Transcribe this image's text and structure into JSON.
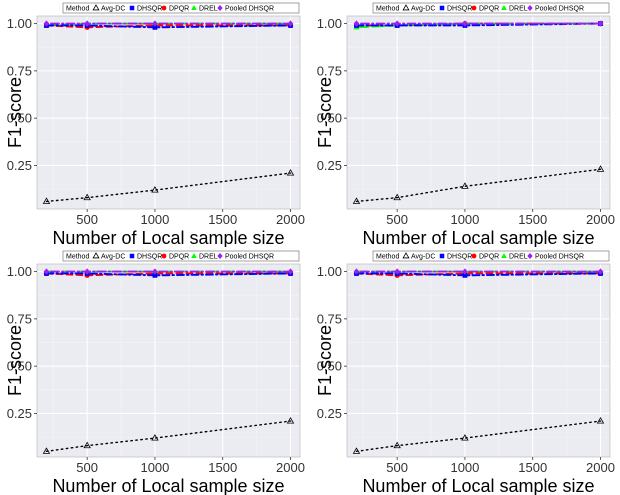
{
  "legend": {
    "title": "Method",
    "items": [
      {
        "name": "Avg-DC",
        "color": "#000000",
        "shape": "triangle-open",
        "line": "dotted"
      },
      {
        "name": "DHSQR",
        "color": "#0000ff",
        "shape": "square",
        "line": "dashdot"
      },
      {
        "name": "DPQR",
        "color": "#ff0000",
        "shape": "circle",
        "line": "dashed"
      },
      {
        "name": "DREL",
        "color": "#00ff00",
        "shape": "triangle",
        "line": "longdash"
      },
      {
        "name": "Pooled DHSQR",
        "color": "#a020f0",
        "shape": "diamond",
        "line": "dotdash"
      }
    ]
  },
  "chart_data": [
    {
      "type": "line",
      "xlabel": "Number of Local sample size",
      "ylabel": "F1-score",
      "xlim": [
        130,
        2070
      ],
      "ylim": [
        0.02,
        1.04
      ],
      "xticks": [
        500,
        1000,
        1500,
        2000
      ],
      "xtick_labels": [
        "500",
        "1000",
        "1500",
        "2000"
      ],
      "yticks": [
        0.25,
        0.5,
        0.75,
        1.0
      ],
      "ytick_labels": [
        "0.25",
        "0.50",
        "0.75",
        "1.00"
      ],
      "grid": true,
      "legend_position": "top",
      "x": [
        200,
        500,
        1000,
        2000
      ],
      "series": [
        {
          "name": "Avg-DC",
          "values": [
            0.06,
            0.08,
            0.12,
            0.21
          ]
        },
        {
          "name": "DHSQR",
          "values": [
            0.99,
            0.99,
            0.98,
            0.99
          ]
        },
        {
          "name": "DPQR",
          "values": [
            0.99,
            0.98,
            0.99,
            0.99
          ]
        },
        {
          "name": "DREL",
          "values": [
            0.99,
            1.0,
            1.0,
            1.0
          ]
        },
        {
          "name": "Pooled DHSQR",
          "values": [
            1.0,
            1.0,
            1.0,
            1.0
          ]
        }
      ]
    },
    {
      "type": "line",
      "xlabel": "Number of Local sample size",
      "ylabel": "F1-score",
      "xlim": [
        130,
        2070
      ],
      "ylim": [
        0.02,
        1.04
      ],
      "xticks": [
        500,
        1000,
        1500,
        2000
      ],
      "xtick_labels": [
        "500",
        "1000",
        "1500",
        "2000"
      ],
      "yticks": [
        0.25,
        0.5,
        0.75,
        1.0
      ],
      "ytick_labels": [
        "0.25",
        "0.50",
        "0.75",
        "1.00"
      ],
      "grid": true,
      "legend_position": "top",
      "x": [
        200,
        500,
        1000,
        2000
      ],
      "series": [
        {
          "name": "Avg-DC",
          "values": [
            0.06,
            0.08,
            0.14,
            0.23
          ]
        },
        {
          "name": "DHSQR",
          "values": [
            0.99,
            0.99,
            0.99,
            1.0
          ]
        },
        {
          "name": "DPQR",
          "values": [
            0.99,
            0.99,
            1.0,
            1.0
          ]
        },
        {
          "name": "DREL",
          "values": [
            0.98,
            0.99,
            1.0,
            1.0
          ]
        },
        {
          "name": "Pooled DHSQR",
          "values": [
            1.0,
            1.0,
            1.0,
            1.0
          ]
        }
      ]
    },
    {
      "type": "line",
      "xlabel": "Number of Local sample size",
      "ylabel": "F1-score",
      "xlim": [
        130,
        2070
      ],
      "ylim": [
        0.02,
        1.04
      ],
      "xticks": [
        500,
        1000,
        1500,
        2000
      ],
      "xtick_labels": [
        "500",
        "1000",
        "1500",
        "2000"
      ],
      "yticks": [
        0.25,
        0.5,
        0.75,
        1.0
      ],
      "ytick_labels": [
        "0.25",
        "0.50",
        "0.75",
        "1.00"
      ],
      "grid": true,
      "legend_position": "top",
      "x": [
        200,
        500,
        1000,
        2000
      ],
      "series": [
        {
          "name": "Avg-DC",
          "values": [
            0.05,
            0.08,
            0.12,
            0.21
          ]
        },
        {
          "name": "DHSQR",
          "values": [
            0.99,
            0.99,
            0.98,
            0.99
          ]
        },
        {
          "name": "DPQR",
          "values": [
            0.99,
            0.98,
            0.99,
            0.99
          ]
        },
        {
          "name": "DREL",
          "values": [
            1.0,
            1.0,
            1.0,
            1.0
          ]
        },
        {
          "name": "Pooled DHSQR",
          "values": [
            1.0,
            1.0,
            1.0,
            1.0
          ]
        }
      ]
    },
    {
      "type": "line",
      "xlabel": "Number of Local sample size",
      "ylabel": "F1-score",
      "xlim": [
        130,
        2070
      ],
      "ylim": [
        0.02,
        1.04
      ],
      "xticks": [
        500,
        1000,
        1500,
        2000
      ],
      "xtick_labels": [
        "500",
        "1000",
        "1500",
        "2000"
      ],
      "yticks": [
        0.25,
        0.5,
        0.75,
        1.0
      ],
      "ytick_labels": [
        "0.25",
        "0.50",
        "0.75",
        "1.00"
      ],
      "grid": true,
      "legend_position": "top",
      "x": [
        200,
        500,
        1000,
        2000
      ],
      "series": [
        {
          "name": "Avg-DC",
          "values": [
            0.05,
            0.08,
            0.12,
            0.21
          ]
        },
        {
          "name": "DHSQR",
          "values": [
            0.99,
            0.99,
            0.98,
            0.99
          ]
        },
        {
          "name": "DPQR",
          "values": [
            0.99,
            0.98,
            0.99,
            0.99
          ]
        },
        {
          "name": "DREL",
          "values": [
            1.0,
            1.0,
            1.0,
            1.0
          ]
        },
        {
          "name": "Pooled DHSQR",
          "values": [
            1.0,
            1.0,
            1.0,
            1.0
          ]
        }
      ]
    }
  ]
}
